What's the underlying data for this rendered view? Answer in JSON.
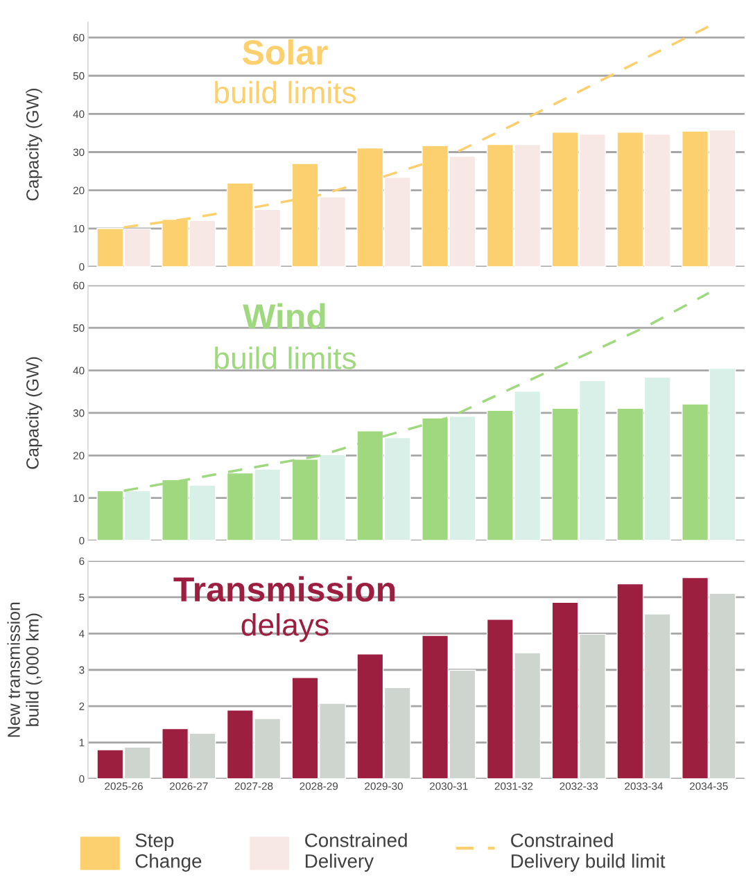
{
  "chart_data": [
    {
      "type": "bar",
      "title": "Solar",
      "subtitle": "build limits",
      "ylabel": "Capacity (GW)",
      "categories": [
        "2025-26",
        "2026-27",
        "2027-28",
        "2028-29",
        "2029-30",
        "2030-31",
        "2031-32",
        "2032-33",
        "2033-34",
        "2034-35"
      ],
      "series": [
        {
          "name": "Step\nChange",
          "color": "#fcd06f",
          "values": [
            10.0,
            12.4,
            21.9,
            27.0,
            31.1,
            31.7,
            32.0,
            35.2,
            35.2,
            35.5
          ]
        },
        {
          "name": "Constrained\nDelivery",
          "color": "#f7e8e6",
          "values": [
            9.9,
            12.1,
            15.0,
            18.3,
            23.4,
            28.9,
            32.0,
            34.7,
            34.7,
            35.8
          ]
        },
        {
          "name": "Constrained\nDelivery build limit",
          "type": "line",
          "color": "#fcd06f",
          "line_style": "dashed",
          "values": [
            10.3,
            12.6,
            15.5,
            18.7,
            23.6,
            29.0,
            37.2,
            45.8,
            54.4,
            62.9
          ]
        }
      ],
      "ylim": [
        0,
        64
      ],
      "yticks": [
        0,
        10,
        20,
        30,
        40,
        50,
        60
      ],
      "grid": "y",
      "tick_labels": "y",
      "legend": "bottom"
    },
    {
      "type": "bar",
      "title": "Wind",
      "subtitle": "build limits",
      "ylabel": "Capacity (GW)",
      "categories": [
        "2025-26",
        "2026-27",
        "2027-28",
        "2028-29",
        "2029-30",
        "2030-31",
        "2031-32",
        "2032-33",
        "2033-34",
        "2034-35"
      ],
      "series": [
        {
          "color": "#a0d880",
          "values": [
            11.7,
            14.3,
            15.9,
            19.1,
            25.8,
            28.8,
            30.6,
            31.1,
            31.1,
            32.1
          ]
        },
        {
          "color": "#d9f0e8",
          "values": [
            11.7,
            13.0,
            16.8,
            20.2,
            24.2,
            29.2,
            35.1,
            37.6,
            38.4,
            40.5
          ]
        },
        {
          "type": "line",
          "color": "#a0d880",
          "line_style": "dashed",
          "values": [
            11.7,
            14.4,
            17.2,
            19.9,
            24.5,
            28.9,
            36.0,
            43.0,
            50.0,
            58.2
          ]
        }
      ],
      "ylim": [
        0,
        60
      ],
      "yticks": [
        0,
        10,
        20,
        30,
        40,
        50,
        60
      ],
      "grid": "y",
      "tick_labels": "y"
    },
    {
      "type": "bar",
      "title": "Transmission",
      "subtitle": "delays",
      "ylabel": "New transmission\nbuild (,000 km)",
      "categories": [
        "2025-26",
        "2026-27",
        "2027-28",
        "2028-29",
        "2029-30",
        "2030-31",
        "2031-32",
        "2032-33",
        "2033-34",
        "2034-35"
      ],
      "series": [
        {
          "color": "#9c1f40",
          "values": [
            0.8,
            1.38,
            1.89,
            2.79,
            3.44,
            3.95,
            4.39,
            4.86,
            5.37,
            5.54
          ]
        },
        {
          "color": "#cdd5ce",
          "values": [
            0.87,
            1.25,
            1.66,
            2.08,
            2.51,
            2.99,
            3.47,
            3.98,
            4.54,
            5.11
          ]
        }
      ],
      "ylim": [
        0,
        6
      ],
      "yticks": [
        0,
        1,
        2,
        3,
        4,
        5,
        6
      ],
      "grid": "y"
    }
  ]
}
